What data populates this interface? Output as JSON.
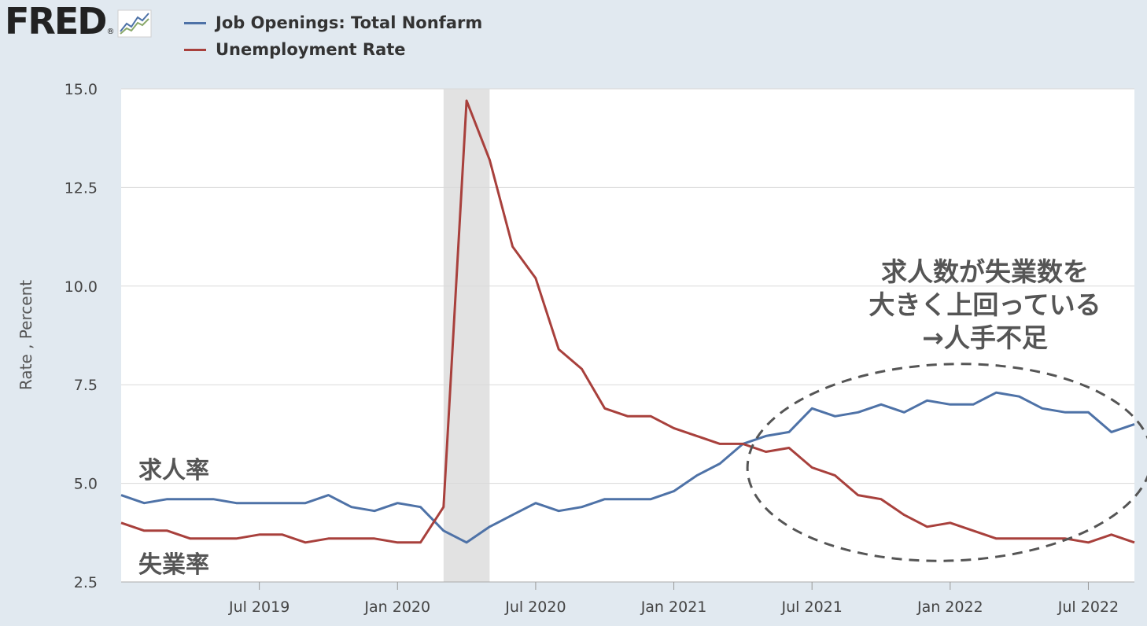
{
  "logo": {
    "text": "FRED",
    "reg": "®"
  },
  "colors": {
    "background": "#e1e9f0",
    "plot_background": "#ffffff",
    "grid": "#d9d9d9",
    "recession": "#e2e2e2",
    "annotation": "#555555"
  },
  "chart_data": {
    "type": "line",
    "ylabel": "Rate , Percent",
    "ylim": [
      2.5,
      15.0
    ],
    "yticks": [
      "15.0",
      "12.5",
      "10.0",
      "7.5",
      "5.0",
      "2.5"
    ],
    "xticks": [
      "Jul 2019",
      "Jan 2020",
      "Jul 2020",
      "Jan 2021",
      "Jul 2021",
      "Jan 2022",
      "Jul 2022"
    ],
    "x_range": [
      "2019-01",
      "2022-09"
    ],
    "grid": true,
    "legend_position": "top-left",
    "recession_shade": [
      "2020-03",
      "2020-05"
    ],
    "x": [
      "2019-01",
      "2019-02",
      "2019-03",
      "2019-04",
      "2019-05",
      "2019-06",
      "2019-07",
      "2019-08",
      "2019-09",
      "2019-10",
      "2019-11",
      "2019-12",
      "2020-01",
      "2020-02",
      "2020-03",
      "2020-04",
      "2020-05",
      "2020-06",
      "2020-07",
      "2020-08",
      "2020-09",
      "2020-10",
      "2020-11",
      "2020-12",
      "2021-01",
      "2021-02",
      "2021-03",
      "2021-04",
      "2021-05",
      "2021-06",
      "2021-07",
      "2021-08",
      "2021-09",
      "2021-10",
      "2021-11",
      "2021-12",
      "2022-01",
      "2022-02",
      "2022-03",
      "2022-04",
      "2022-05",
      "2022-06",
      "2022-07",
      "2022-08",
      "2022-09"
    ],
    "series": [
      {
        "name": "Job Openings: Total Nonfarm",
        "color": "#4e72a7",
        "values": [
          4.7,
          4.5,
          4.6,
          4.6,
          4.6,
          4.5,
          4.5,
          4.5,
          4.5,
          4.7,
          4.4,
          4.3,
          4.5,
          4.4,
          3.8,
          3.5,
          3.9,
          4.2,
          4.5,
          4.3,
          4.4,
          4.6,
          4.6,
          4.6,
          4.8,
          5.2,
          5.5,
          6.0,
          6.2,
          6.3,
          6.9,
          6.7,
          6.8,
          7.0,
          6.8,
          7.1,
          7.0,
          7.0,
          7.3,
          7.2,
          6.9,
          6.8,
          6.8,
          6.3,
          6.5
        ]
      },
      {
        "name": "Unemployment Rate",
        "color": "#a8403c",
        "values": [
          4.0,
          3.8,
          3.8,
          3.6,
          3.6,
          3.6,
          3.7,
          3.7,
          3.5,
          3.6,
          3.6,
          3.6,
          3.5,
          3.5,
          4.4,
          14.7,
          13.2,
          11.0,
          10.2,
          8.4,
          7.9,
          6.9,
          6.7,
          6.7,
          6.4,
          6.2,
          6.0,
          6.0,
          5.8,
          5.9,
          5.4,
          5.2,
          4.7,
          4.6,
          4.2,
          3.9,
          4.0,
          3.8,
          3.6,
          3.6,
          3.6,
          3.6,
          3.5,
          3.7,
          3.5
        ]
      }
    ],
    "annotations": {
      "job_rate_label": "求人率",
      "unemployment_label": "失業率",
      "callout_line1": "求人数が失業数を",
      "callout_line2": "大きく上回っている",
      "callout_line3": "→人手不足"
    }
  }
}
